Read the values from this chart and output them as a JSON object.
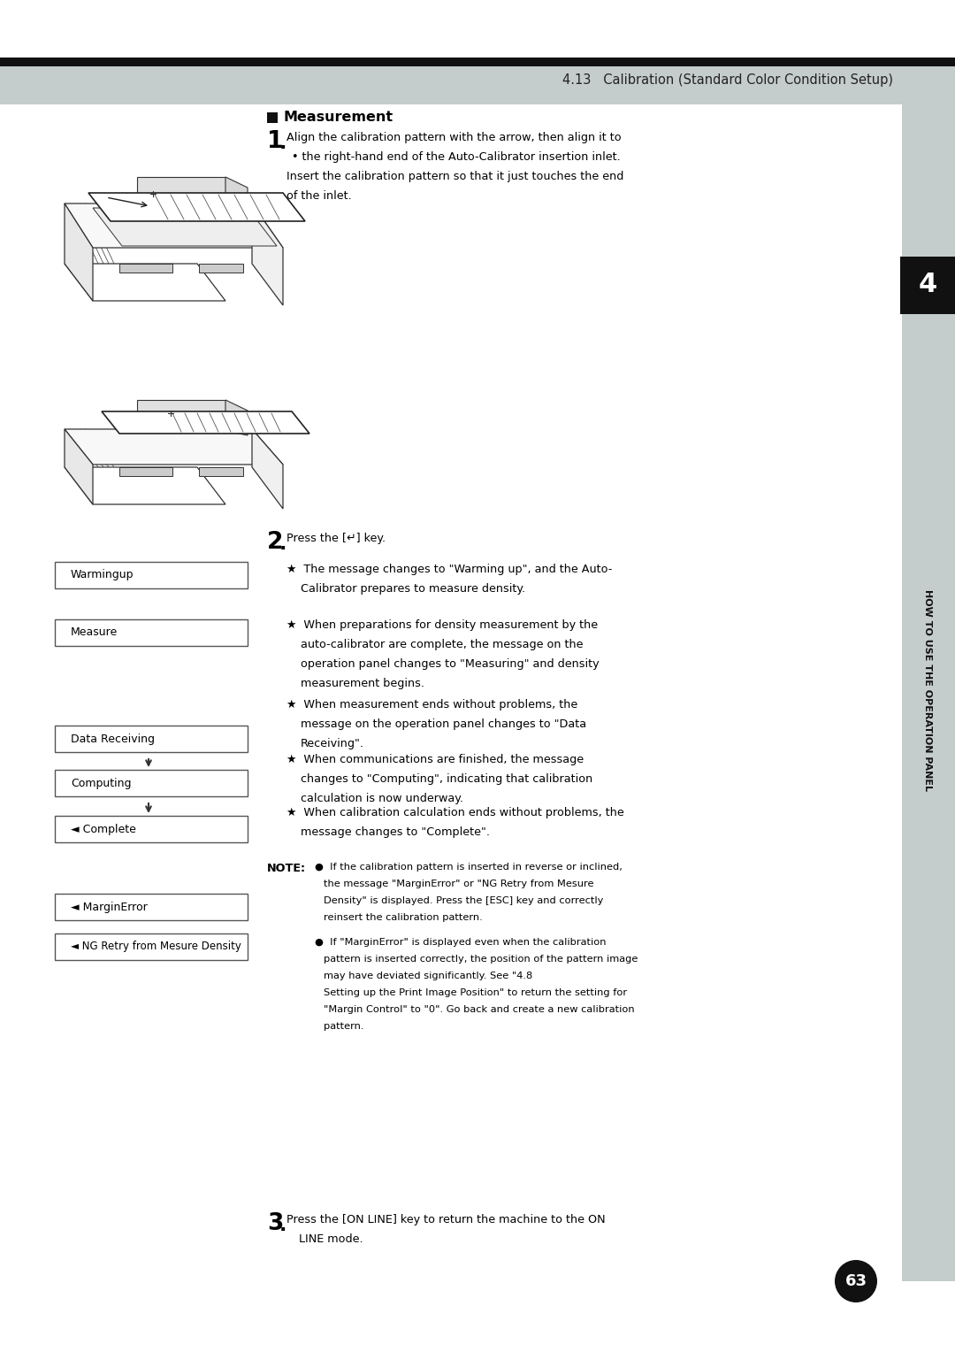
{
  "page_width": 10.8,
  "page_height": 15.28,
  "dpi": 100,
  "bg_color": "#ffffff",
  "header_bar_color": "#111111",
  "header_bg_color": "#c5cccc",
  "header_text": "4.13   Calibration (Standard Color Condition Setup)",
  "header_text_color": "#222222",
  "section_title": "Measurement",
  "text_color": "#000000",
  "body_font_size": 9.2,
  "note_font_size": 8.2,
  "small_font_size": 8.5,
  "box_border_color": "#444444",
  "box_warmingup": "Warmingup",
  "box_measure": "Measure",
  "box_data_receiving": "Data Receiving",
  "box_computing": "Computing",
  "box_complete": "◄ Complete",
  "box_margin_error": "◄ MarginError",
  "box_ng_retry": "◄ NG Retry from Mesure Density",
  "sidebar_text": "HOW TO USE THE OPERATION PANEL",
  "sidebar_number": "4",
  "page_number": "63"
}
